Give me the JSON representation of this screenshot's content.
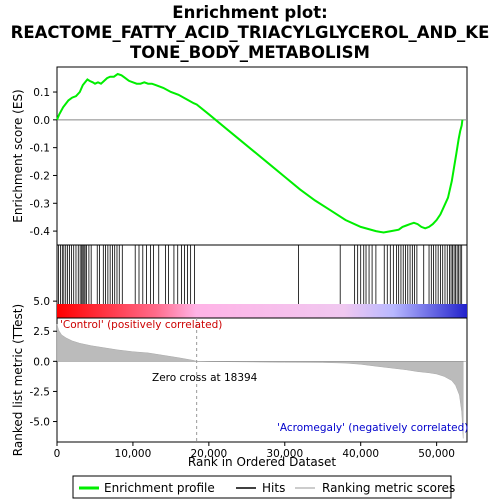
{
  "chart_data": {
    "type": "line",
    "title_lines": [
      "Enrichment plot:",
      "REACTOME_FATTY_ACID_TRIACYLGLYCEROL_AND_KE",
      "TONE_BODY_METABOLISM"
    ],
    "es_panel": {
      "ylabel": "Enrichment score (ES)",
      "ylim": [
        -0.45,
        0.19
      ],
      "yticks": [
        0.1,
        0.0,
        -0.1,
        -0.2,
        -0.3,
        -0.4
      ],
      "ytick_labels": [
        "0.1",
        "0.0",
        "-0.1",
        "-0.2",
        "-0.3",
        "-0.4"
      ],
      "line_color": "#00ee00",
      "x": [
        0,
        300,
        800,
        1500,
        2000,
        2500,
        3000,
        3400,
        3700,
        4000,
        4300,
        4700,
        5000,
        5400,
        5800,
        6200,
        6600,
        7000,
        7500,
        8000,
        8500,
        9000,
        9500,
        10000,
        10500,
        11000,
        11500,
        12000,
        12500,
        13000,
        14000,
        15000,
        16000,
        17000,
        18000,
        18394,
        20000,
        22000,
        24000,
        26000,
        28000,
        30000,
        32000,
        34000,
        36000,
        38000,
        40000,
        42000,
        43000,
        44000,
        45000,
        45500,
        46000,
        46500,
        47000,
        47500,
        48000,
        48500,
        49000,
        49500,
        50000,
        50500,
        51000,
        51500,
        52000,
        52300,
        52600,
        52900,
        53100,
        53300,
        53400
      ],
      "y": [
        0.0,
        0.02,
        0.045,
        0.07,
        0.08,
        0.085,
        0.1,
        0.125,
        0.135,
        0.145,
        0.14,
        0.135,
        0.13,
        0.135,
        0.13,
        0.14,
        0.15,
        0.155,
        0.155,
        0.165,
        0.16,
        0.15,
        0.14,
        0.135,
        0.13,
        0.13,
        0.135,
        0.13,
        0.13,
        0.125,
        0.115,
        0.1,
        0.09,
        0.075,
        0.06,
        0.055,
        0.02,
        -0.025,
        -0.07,
        -0.115,
        -0.16,
        -0.205,
        -0.25,
        -0.29,
        -0.325,
        -0.36,
        -0.385,
        -0.4,
        -0.405,
        -0.4,
        -0.395,
        -0.385,
        -0.38,
        -0.375,
        -0.37,
        -0.375,
        -0.385,
        -0.39,
        -0.385,
        -0.375,
        -0.36,
        -0.34,
        -0.31,
        -0.28,
        -0.22,
        -0.17,
        -0.12,
        -0.07,
        -0.04,
        -0.02,
        0.0
      ]
    },
    "hits_panel": {
      "hit_positions": [
        200,
        450,
        700,
        900,
        1150,
        1400,
        1650,
        1900,
        2200,
        2500,
        2800,
        3050,
        3250,
        3400,
        3550,
        3700,
        3900,
        4200,
        4500,
        5300,
        5600,
        6100,
        6400,
        6700,
        7000,
        7300,
        7600,
        7900,
        8200,
        8600,
        10300,
        10800,
        11300,
        11800,
        12300,
        12700,
        13400,
        14300,
        14700,
        15400,
        15900,
        16400,
        16800,
        17200,
        17600,
        18100,
        31800,
        37300,
        39200,
        39600,
        40000,
        40400,
        40700,
        41100,
        41500,
        42000,
        43100,
        43500,
        43900,
        44300,
        44700,
        45000,
        45300,
        45600,
        45900,
        46200,
        46500,
        46800,
        47100,
        47400,
        48300,
        49000,
        49300,
        49600,
        49900,
        50200,
        50500,
        50800,
        51100,
        51400,
        51700,
        51900,
        52100,
        52300,
        52500,
        52700,
        52900,
        53100,
        53300
      ],
      "gradient_stops": [
        "#ff0000",
        "#ff6b8a",
        "#ffb3e6",
        "#f0c8f0",
        "#b8b8ff",
        "#2222cc"
      ]
    },
    "metric_panel": {
      "ylabel": "Ranked list metric (TTest)",
      "ylim": [
        -6.7,
        3.6
      ],
      "yticks": [
        5.0,
        2.5,
        0.0,
        -2.5,
        -5.0
      ],
      "ytick_labels": [
        "5.0",
        "2.5",
        "0.0",
        "-2.5",
        "-5.0"
      ],
      "fill_color": "#bbbbbb",
      "x": [
        0,
        200,
        600,
        1200,
        2000,
        3000,
        4500,
        6000,
        8000,
        10000,
        12000,
        14000,
        16000,
        18000,
        18394,
        20000,
        25000,
        30000,
        35000,
        38000,
        40000,
        42000,
        44000,
        46000,
        47500,
        49000,
        50000,
        51000,
        52000,
        52500,
        53000,
        53300,
        53500
      ],
      "y": [
        3.1,
        2.6,
        2.2,
        1.95,
        1.7,
        1.5,
        1.3,
        1.15,
        0.95,
        0.8,
        0.7,
        0.5,
        0.3,
        0.08,
        0.0,
        -0.02,
        -0.05,
        -0.08,
        -0.1,
        -0.15,
        -0.25,
        -0.4,
        -0.55,
        -0.7,
        -0.85,
        -0.95,
        -1.05,
        -1.25,
        -1.6,
        -2.0,
        -2.8,
        -4.2,
        -6.4
      ],
      "annotations": {
        "positive": "'Control' (positively correlated)",
        "zero_cross": "Zero cross at 18394",
        "negative": "'Acromegaly' (negatively correlated)"
      },
      "zero_cross": 18394
    },
    "xlabel": "Rank in Ordered Dataset",
    "xlim": [
      0,
      54000
    ],
    "xticks": [
      0,
      10000,
      20000,
      30000,
      40000,
      50000
    ],
    "xtick_labels": [
      "0",
      "10,000",
      "20,000",
      "30,000",
      "40,000",
      "50,000"
    ],
    "legend": {
      "placement": "bottom",
      "items": [
        {
          "label": "Enrichment profile",
          "color": "#00ee00"
        },
        {
          "label": "Hits",
          "color": "#000000"
        },
        {
          "label": "Ranking metric scores",
          "color": "#bbbbbb"
        }
      ]
    }
  }
}
